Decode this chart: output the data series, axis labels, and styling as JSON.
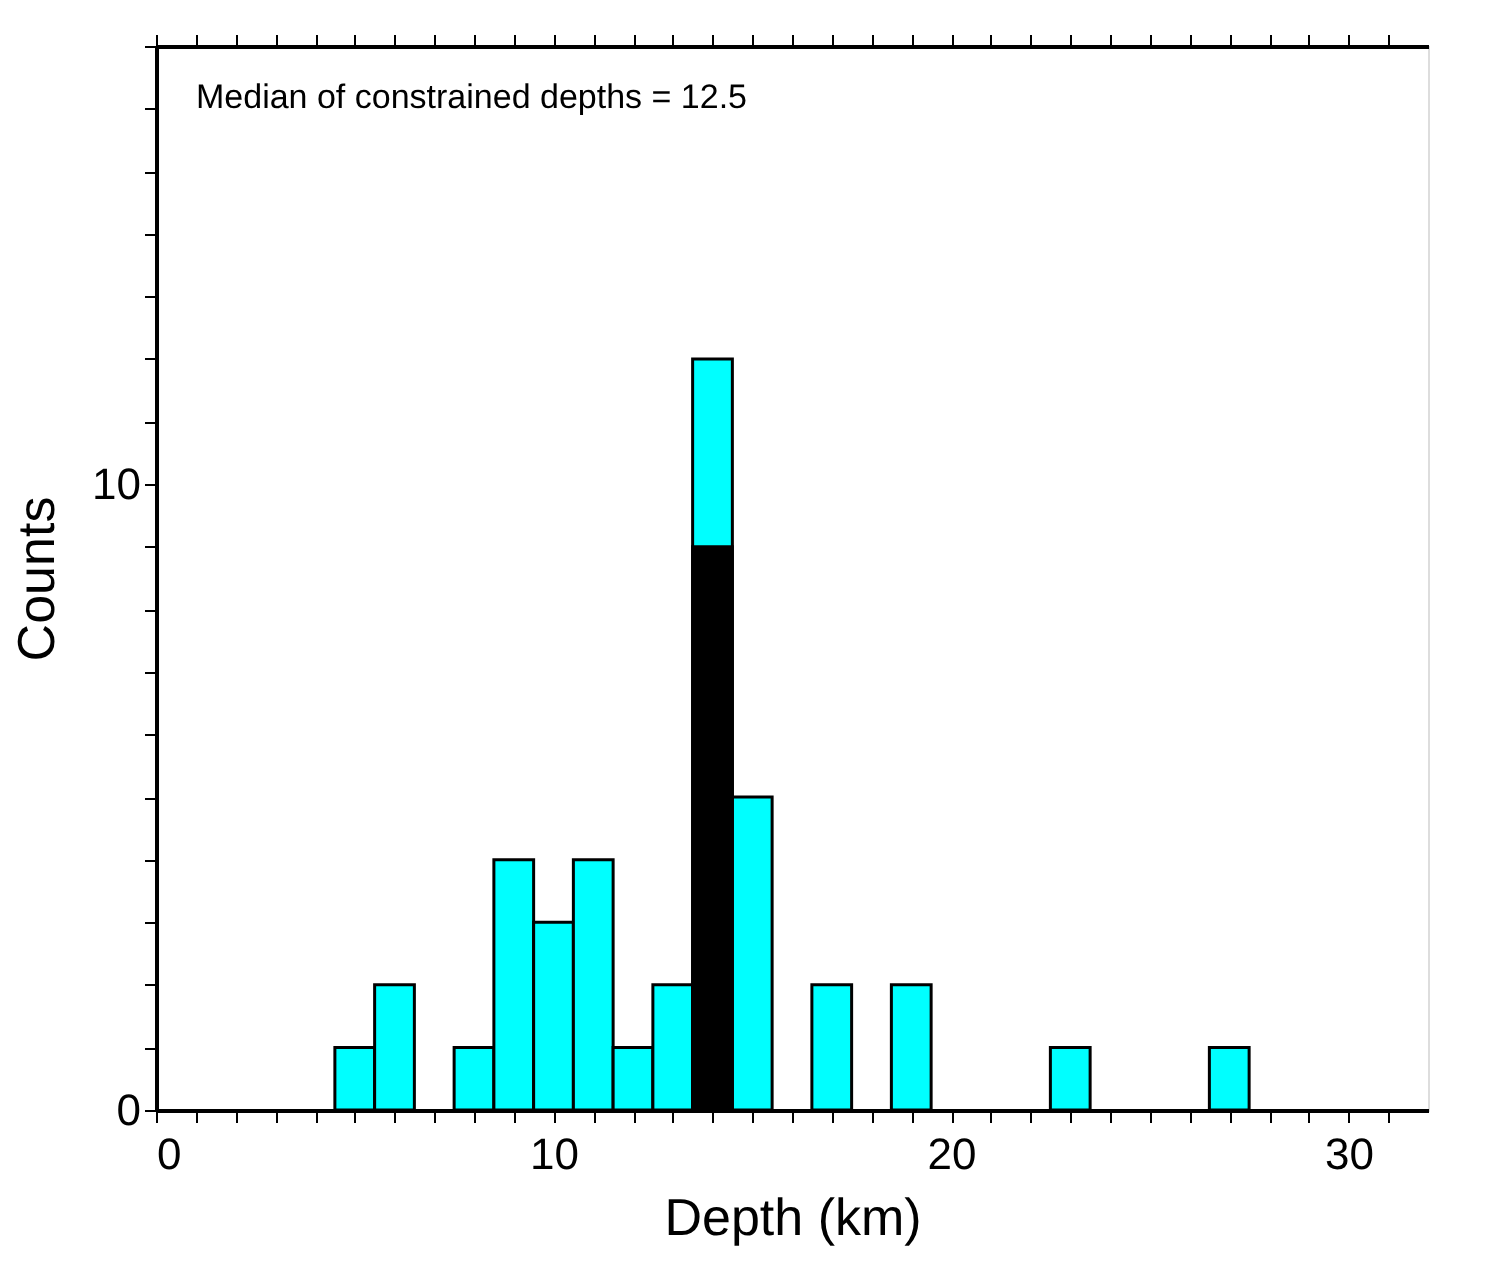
{
  "chart_data": {
    "type": "histogram",
    "xlabel": "Depth (km)",
    "ylabel": "Counts",
    "annotations": [
      "Median of constrained depths = 12.5"
    ],
    "bins": [
      4.5,
      5.5,
      6.5,
      7.5,
      8.5,
      9.5,
      10.5,
      11.5,
      12.5,
      13.5,
      14.5,
      15.5,
      16.5,
      17.5,
      18.5,
      19.5,
      20.5,
      21.5,
      22.5,
      23.5,
      24.5,
      25.5,
      26.5,
      27.5
    ],
    "series": [
      {
        "color": "#00ffff",
        "values": [
          1,
          2,
          0,
          1,
          4,
          3,
          4,
          1,
          2,
          12,
          5,
          0,
          2,
          0,
          2,
          0,
          0,
          0,
          1,
          0,
          0,
          0,
          1
        ]
      },
      {
        "color": "#000000",
        "values": [
          null,
          null,
          null,
          null,
          null,
          null,
          null,
          null,
          null,
          9,
          null,
          null,
          null,
          null,
          null,
          null,
          null,
          null,
          null,
          null,
          null,
          null,
          null
        ]
      }
    ],
    "xlim": [
      0,
      32
    ],
    "xticks": [
      0,
      {
        "value": 1,
        "label": null
      },
      {
        "value": 2,
        "label": null
      },
      {
        "value": 3,
        "label": null
      },
      {
        "value": 4,
        "label": null
      },
      {
        "value": 5,
        "label": null
      },
      {
        "value": 6,
        "label": null
      },
      {
        "value": 7,
        "label": null
      },
      {
        "value": 8,
        "label": null
      },
      {
        "value": 9,
        "label": null
      },
      10,
      {
        "value": 11,
        "label": null
      },
      {
        "value": 12,
        "label": null
      },
      {
        "value": 13,
        "label": null
      },
      {
        "value": 14,
        "label": null
      },
      {
        "value": 15,
        "label": null
      },
      {
        "value": 16,
        "label": null
      },
      {
        "value": 17,
        "label": null
      },
      {
        "value": 18,
        "label": null
      },
      {
        "value": 19,
        "label": null
      },
      20,
      {
        "value": 21,
        "label": null
      },
      {
        "value": 22,
        "label": null
      },
      {
        "value": 23,
        "label": null
      },
      {
        "value": 24,
        "label": null
      },
      {
        "value": 25,
        "label": null
      },
      {
        "value": 26,
        "label": null
      },
      {
        "value": 27,
        "label": null
      },
      {
        "value": 28,
        "label": null
      },
      {
        "value": 29,
        "label": null
      },
      30,
      {
        "value": 31,
        "label": null
      }
    ],
    "ylim": [
      0,
      17
    ],
    "yticks": [
      0,
      {
        "value": 1,
        "label": null
      },
      {
        "value": 2,
        "label": null
      },
      {
        "value": 3,
        "label": null
      },
      {
        "value": 4,
        "label": null
      },
      {
        "value": 5,
        "label": null
      },
      {
        "value": 6,
        "label": null
      },
      {
        "value": 7,
        "label": null
      },
      {
        "value": 8,
        "label": null
      },
      {
        "value": 9,
        "label": null
      },
      10,
      {
        "value": 11,
        "label": null
      },
      {
        "value": 12,
        "label": null
      },
      {
        "value": 13,
        "label": null
      },
      {
        "value": 14,
        "label": null
      },
      {
        "value": 15,
        "label": null
      },
      {
        "value": 16,
        "label": null
      },
      {
        "value": 17,
        "label": null
      }
    ],
    "grid": false
  }
}
